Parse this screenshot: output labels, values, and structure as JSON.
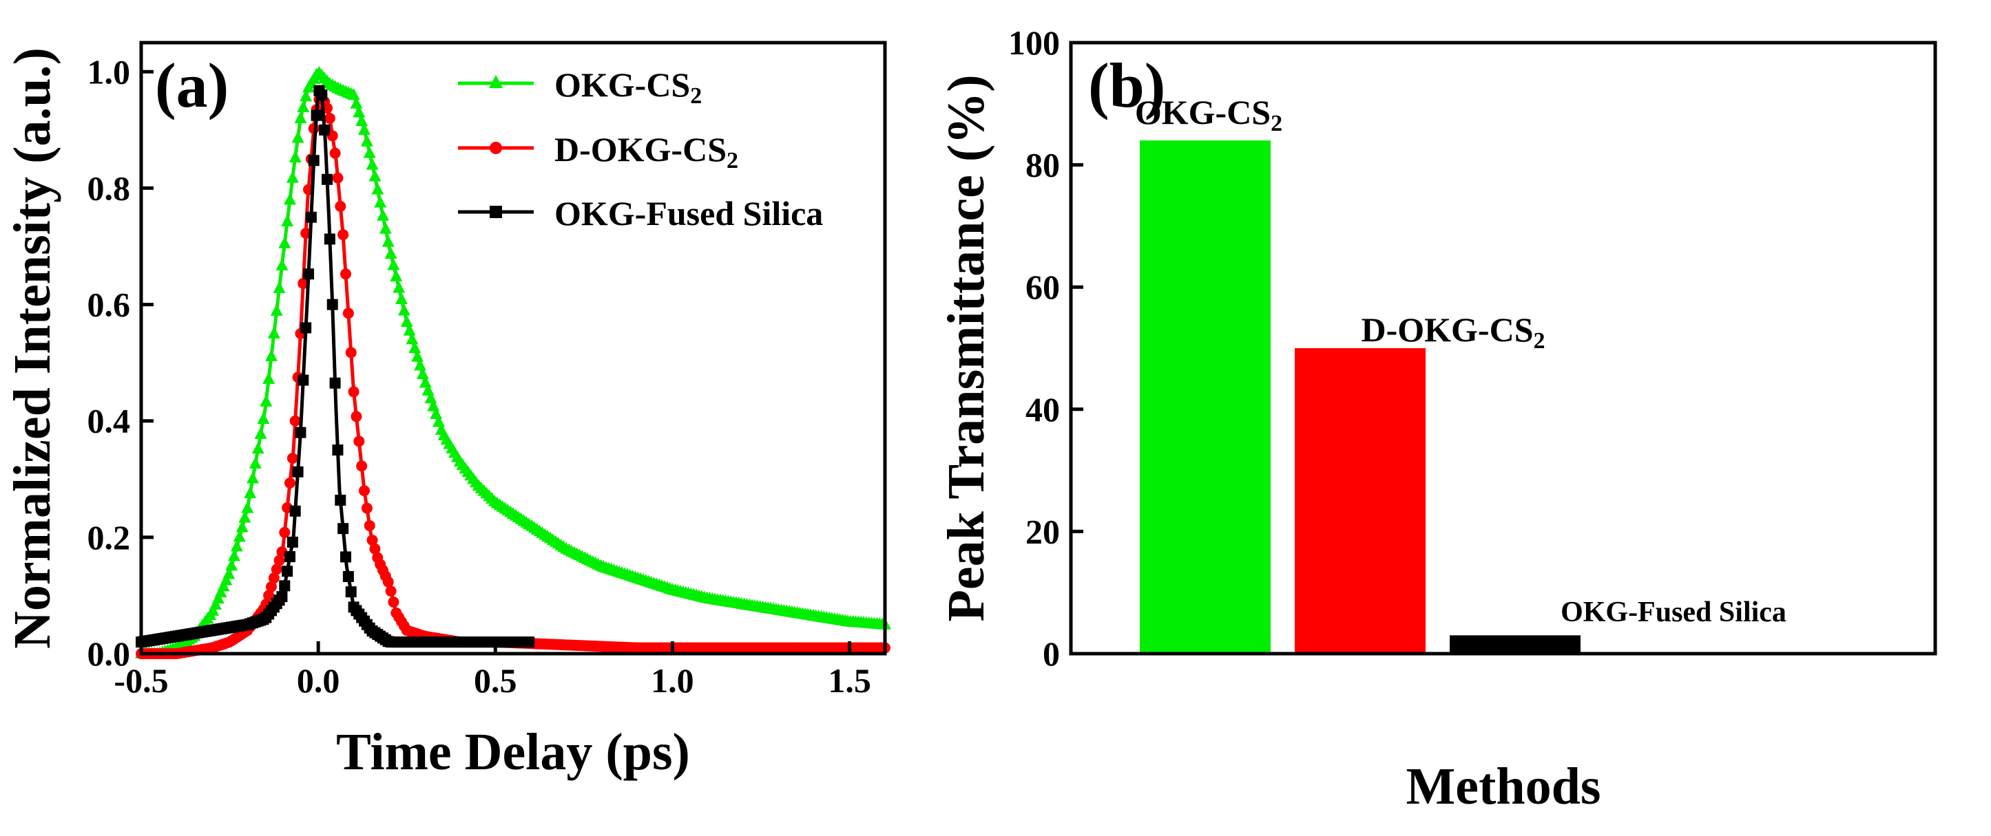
{
  "chart_data": [
    {
      "type": "line",
      "panel_label": "(a)",
      "xlabel": "Time Delay (ps)",
      "ylabel": "Normalized Intensity (a.u.)",
      "xlim": [
        -0.5,
        1.6
      ],
      "ylim": [
        0,
        1.05
      ],
      "x_ticks": [
        "-0.5",
        "0.0",
        "0.5",
        "1.0",
        "1.5"
      ],
      "y_ticks": [
        "0.0",
        "0.2",
        "0.4",
        "0.6",
        "0.8",
        "1.0"
      ],
      "x_tick_values": [
        -0.5,
        0.0,
        0.5,
        1.0,
        1.5
      ],
      "y_tick_values": [
        0.0,
        0.2,
        0.4,
        0.6,
        0.8,
        1.0
      ],
      "legend": "top-right",
      "series": [
        {
          "name": "OKG-CS",
          "subscript": "2",
          "color": "#00ee00",
          "marker": "triangle",
          "x": [
            -0.5,
            -0.45,
            -0.4,
            -0.35,
            -0.3,
            -0.25,
            -0.2,
            -0.15,
            -0.1,
            -0.07,
            -0.05,
            -0.03,
            0.0,
            0.03,
            0.06,
            0.1,
            0.13,
            0.16,
            0.2,
            0.25,
            0.3,
            0.35,
            0.4,
            0.45,
            0.5,
            0.6,
            0.7,
            0.8,
            0.9,
            1.0,
            1.1,
            1.2,
            1.3,
            1.4,
            1.5,
            1.6
          ],
          "y": [
            0.0,
            0.0,
            0.01,
            0.03,
            0.07,
            0.14,
            0.25,
            0.42,
            0.68,
            0.83,
            0.92,
            0.97,
            1.0,
            0.98,
            0.97,
            0.96,
            0.9,
            0.82,
            0.7,
            0.57,
            0.47,
            0.38,
            0.33,
            0.29,
            0.26,
            0.22,
            0.18,
            0.15,
            0.13,
            0.11,
            0.095,
            0.085,
            0.075,
            0.065,
            0.055,
            0.05
          ]
        },
        {
          "name": "D-OKG-CS",
          "subscript": "2",
          "color": "#ff0000",
          "marker": "circle",
          "x": [
            -0.5,
            -0.4,
            -0.3,
            -0.25,
            -0.2,
            -0.15,
            -0.1,
            -0.07,
            -0.05,
            -0.03,
            -0.01,
            0.0,
            0.01,
            0.03,
            0.05,
            0.07,
            0.1,
            0.13,
            0.15,
            0.17,
            0.2,
            0.22,
            0.25,
            0.3,
            0.4,
            0.5,
            0.7,
            0.9,
            1.1,
            1.3,
            1.5,
            1.6
          ],
          "y": [
            0.0,
            0.0,
            0.01,
            0.02,
            0.04,
            0.08,
            0.18,
            0.35,
            0.55,
            0.78,
            0.92,
            0.95,
            0.96,
            0.93,
            0.85,
            0.72,
            0.45,
            0.28,
            0.2,
            0.16,
            0.12,
            0.07,
            0.04,
            0.03,
            0.02,
            0.02,
            0.015,
            0.01,
            0.01,
            0.01,
            0.01,
            0.01
          ]
        },
        {
          "name": "OKG-Fused Silica",
          "subscript": "",
          "color": "#000000",
          "marker": "square",
          "x": [
            -0.5,
            -0.4,
            -0.3,
            -0.2,
            -0.15,
            -0.1,
            -0.07,
            -0.05,
            -0.03,
            -0.01,
            0.0,
            0.01,
            0.02,
            0.03,
            0.04,
            0.05,
            0.06,
            0.08,
            0.1,
            0.15,
            0.2,
            0.3,
            0.4,
            0.5,
            0.6
          ],
          "y": [
            0.02,
            0.03,
            0.04,
            0.05,
            0.06,
            0.1,
            0.2,
            0.38,
            0.62,
            0.88,
            0.97,
            0.96,
            0.88,
            0.75,
            0.6,
            0.42,
            0.28,
            0.15,
            0.08,
            0.04,
            0.02,
            0.02,
            0.02,
            0.02,
            0.02
          ]
        }
      ]
    },
    {
      "type": "bar",
      "panel_label": "(b)",
      "xlabel": "Methods",
      "ylabel": "Peak Transmittance (%)",
      "ylim": [
        0,
        100
      ],
      "y_ticks": [
        "0",
        "20",
        "40",
        "60",
        "80",
        "100"
      ],
      "y_tick_values": [
        0,
        20,
        40,
        60,
        80,
        100
      ],
      "categories": [
        "OKG-CS",
        "D-OKG-CS",
        "OKG-Fused Silica"
      ],
      "subscripts": [
        "2",
        "2",
        ""
      ],
      "values": [
        84,
        50,
        3
      ],
      "colors": [
        "#00ee00",
        "#ff0000",
        "#000000"
      ]
    }
  ]
}
